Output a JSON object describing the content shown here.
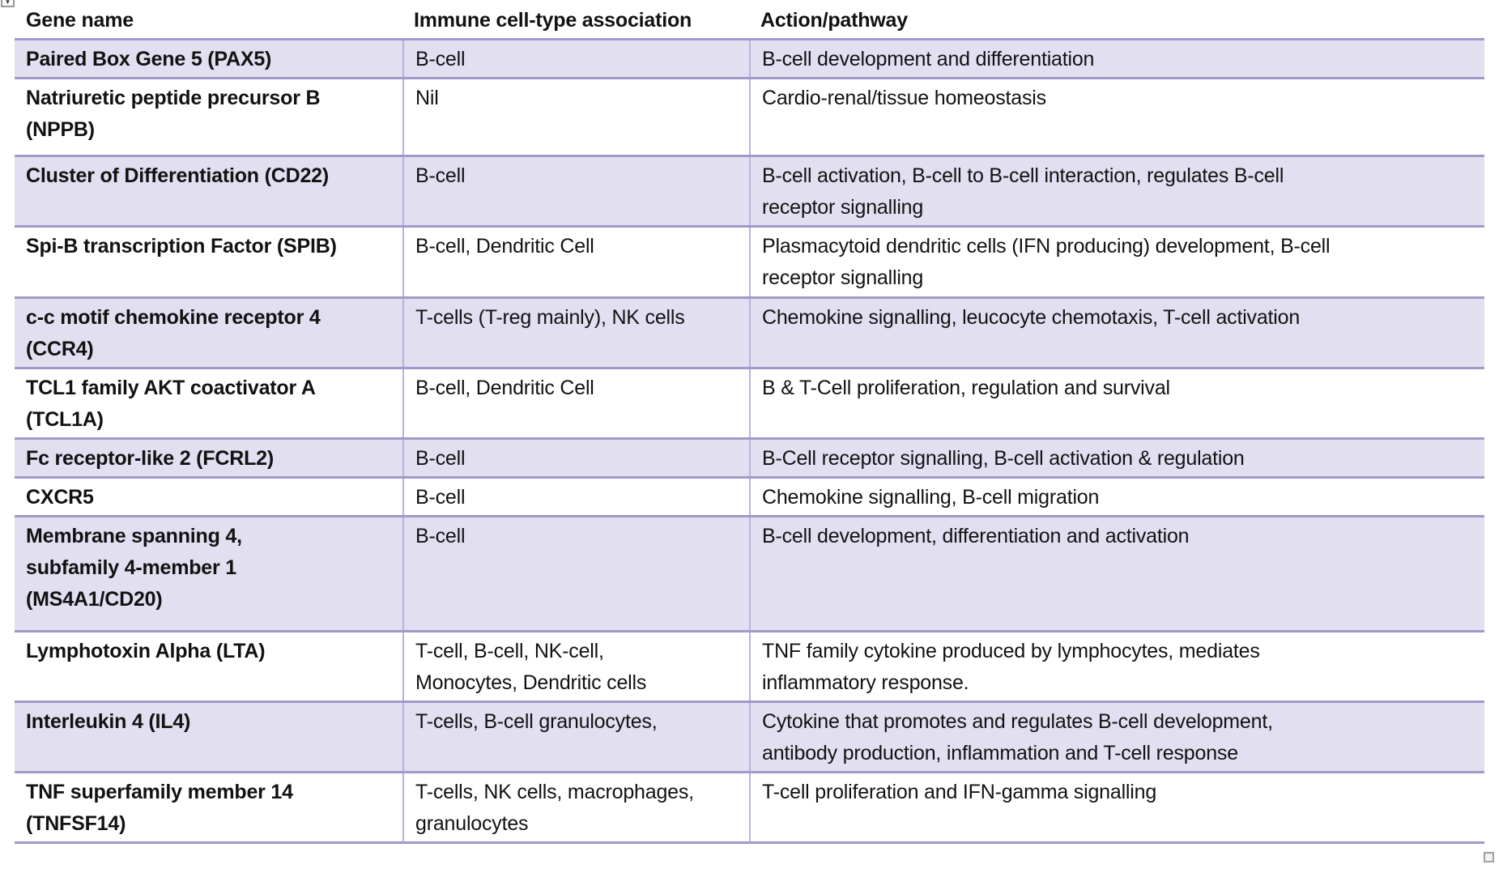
{
  "document": {
    "marker_icon_glyph": "▾"
  },
  "colors": {
    "row_highlight_bg": "#E1DFF0",
    "row_border": "#9E9ACA",
    "column_border": "#B7B3DB",
    "text": "#121212"
  },
  "table": {
    "headers": {
      "gene": "Gene name",
      "association": "Immune cell-type association",
      "action": "Action/pathway"
    },
    "rows": [
      {
        "gene": "Paired Box Gene 5 (PAX5)",
        "association": "B-cell",
        "action": "B-cell development and differentiation"
      },
      {
        "gene": "Natriuretic peptide precursor B\n(NPPB)",
        "association": "Nil",
        "action": "Cardio-renal/tissue homeostasis"
      },
      {
        "gene": "Cluster of Differentiation (CD22)",
        "association": "B-cell",
        "action": "B-cell activation, B-cell to B-cell interaction, regulates B-cell\nreceptor signalling"
      },
      {
        "gene": "Spi-B transcription Factor (SPIB)",
        "association": "B-cell, Dendritic Cell",
        "action": "Plasmacytoid dendritic cells (IFN producing) development, B-cell\nreceptor signalling"
      },
      {
        "gene": "c-c motif chemokine receptor 4\n(CCR4)",
        "association": "T-cells (T-reg mainly), NK cells",
        "action": "Chemokine signalling, leucocyte chemotaxis, T-cell activation"
      },
      {
        "gene": "TCL1 family AKT coactivator A\n(TCL1A)",
        "association": "B-cell, Dendritic Cell",
        "action": "B & T-Cell proliferation, regulation and survival"
      },
      {
        "gene": "Fc receptor-like 2 (FCRL2)",
        "association": "B-cell",
        "action": "B-Cell receptor signalling, B-cell activation & regulation"
      },
      {
        "gene": "CXCR5",
        "association": "B-cell",
        "action": "Chemokine signalling, B-cell migration"
      },
      {
        "gene": "Membrane spanning 4,\nsubfamily 4-member 1\n(MS4A1/CD20)",
        "association": "B-cell",
        "action": "B-cell development, differentiation and activation"
      },
      {
        "gene": "Lymphotoxin Alpha (LTA)",
        "association": "T-cell, B-cell, NK-cell,\nMonocytes, Dendritic cells",
        "action": "TNF family cytokine produced by lymphocytes, mediates\ninflammatory response."
      },
      {
        "gene": "Interleukin 4 (IL4)",
        "association": "T-cells, B-cell granulocytes,",
        "action": "Cytokine that promotes and regulates B-cell development,\nantibody production, inflammation and T-cell response"
      },
      {
        "gene": "TNF superfamily member 14\n(TNFSF14)",
        "association": "T-cells, NK cells, macrophages,\ngranulocytes",
        "action": "T-cell proliferation and IFN-gamma signalling"
      }
    ]
  }
}
